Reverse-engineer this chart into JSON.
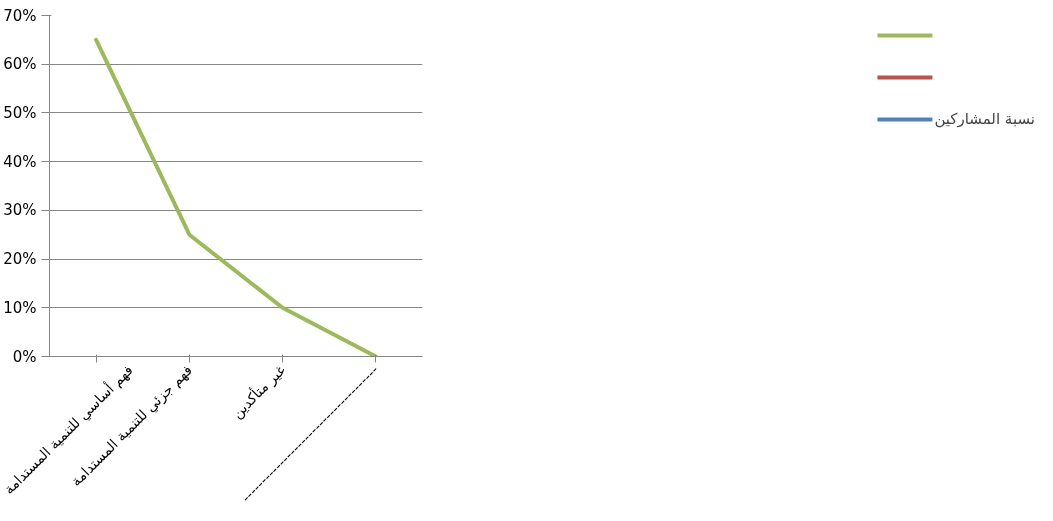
{
  "chart_data": {
    "type": "line",
    "categories": [
      "فهم أساسي للتنمية المستدامة",
      "فهم جزئي للتنمية المستدامة",
      "غير متأكدين",
      "-------------------------------------"
    ],
    "series": [
      {
        "name": "نسبة المشاركين",
        "color": "#4f81bd",
        "values": [
          null,
          null,
          null,
          null
        ]
      },
      {
        "color": "#c0504d",
        "values": [
          null,
          null,
          null,
          null
        ]
      },
      {
        "color": "#9bbb59",
        "values": [
          65,
          25,
          10,
          0
        ]
      }
    ],
    "ylim": [
      0,
      70
    ],
    "yticks": [
      {
        "value": 0,
        "label": "0%"
      },
      {
        "value": 10,
        "label": "10%"
      },
      {
        "value": 20,
        "label": "20%"
      },
      {
        "value": 30,
        "label": "30%"
      },
      {
        "value": 40,
        "label": "40%"
      },
      {
        "value": 50,
        "label": "50%"
      },
      {
        "value": 60,
        "label": "60%"
      },
      {
        "value": 70,
        "label": "70%"
      }
    ],
    "grid": "y",
    "legend": "right",
    "marker": "none",
    "line_style": "solid"
  }
}
